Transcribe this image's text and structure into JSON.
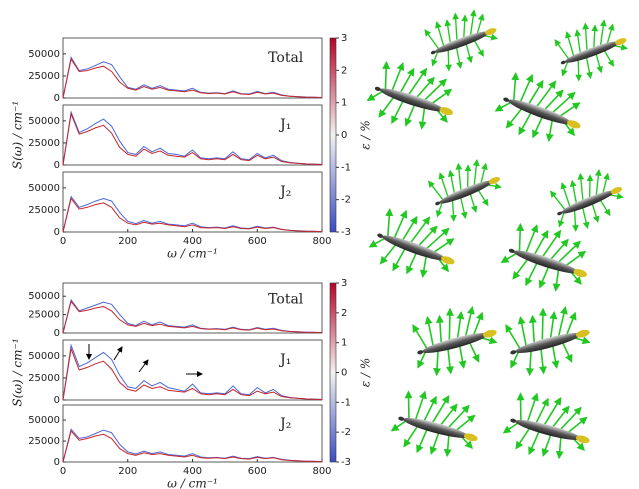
{
  "chart_data": [
    {
      "type": "line",
      "annotation": "Total",
      "annotation_color": "#000000",
      "x": [
        0,
        25,
        50,
        75,
        100,
        125,
        150,
        175,
        200,
        225,
        250,
        275,
        300,
        325,
        350,
        375,
        400,
        425,
        450,
        475,
        500,
        525,
        550,
        575,
        600,
        625,
        650,
        675,
        700,
        725,
        750,
        775,
        800
      ],
      "series": [
        {
          "color": "#4a68d8",
          "values": [
            0,
            46000,
            31000,
            33000,
            37000,
            41000,
            38000,
            24000,
            12000,
            10000,
            15000,
            11000,
            14000,
            10000,
            9000,
            8000,
            11000,
            6500,
            5500,
            6000,
            5000,
            8000,
            5000,
            4500,
            7500,
            5000,
            6500,
            3500,
            2200,
            1600,
            1100,
            900,
            600
          ]
        },
        {
          "color": "#c8262b",
          "values": [
            0,
            44000,
            30000,
            31000,
            34000,
            36000,
            30000,
            18000,
            11000,
            9000,
            13000,
            10000,
            12000,
            9000,
            8000,
            7000,
            9000,
            6000,
            5000,
            5500,
            4500,
            7000,
            4500,
            4000,
            6500,
            4500,
            5500,
            3000,
            2000,
            1500,
            1000,
            800,
            500
          ]
        }
      ],
      "xlim": [
        0,
        800
      ],
      "ylim": [
        0,
        68000
      ],
      "yticks": [
        0,
        25000,
        50000
      ]
    },
    {
      "type": "line",
      "annotation": "J₁",
      "annotation_color": "#d62728",
      "ylabel": "S(ω) / cm⁻¹",
      "colorbar": {
        "label": "ε / %",
        "lim": [
          -3,
          3
        ],
        "ticks": [
          -3,
          -2,
          -1,
          0,
          1,
          2,
          3
        ],
        "colors": [
          "#3b4cc0",
          "#f2f2f2",
          "#b40426"
        ]
      },
      "x": [
        0,
        25,
        50,
        75,
        100,
        125,
        150,
        175,
        200,
        225,
        250,
        275,
        300,
        325,
        350,
        375,
        400,
        425,
        450,
        475,
        500,
        525,
        550,
        575,
        600,
        625,
        650,
        675,
        700,
        725,
        750,
        775,
        800
      ],
      "series": [
        {
          "color": "#4a68d8",
          "values": [
            0,
            60000,
            37000,
            41000,
            47000,
            52000,
            44000,
            27000,
            14000,
            12000,
            21000,
            15000,
            19000,
            13000,
            12000,
            10000,
            17000,
            8000,
            7000,
            8000,
            7000,
            15000,
            7000,
            6000,
            13000,
            8000,
            11000,
            5000,
            3000,
            2000,
            1300,
            1000,
            700
          ]
        },
        {
          "color": "#c8262b",
          "values": [
            0,
            58000,
            35000,
            38000,
            42000,
            45000,
            36000,
            20000,
            12000,
            10000,
            18000,
            13000,
            16000,
            11000,
            10000,
            9000,
            14000,
            7000,
            6000,
            7000,
            6000,
            12000,
            6000,
            5000,
            11000,
            7000,
            9000,
            4000,
            2500,
            1800,
            1200,
            900,
            600
          ]
        }
      ],
      "xlim": [
        0,
        800
      ],
      "ylim": [
        0,
        68000
      ],
      "yticks": [
        0,
        25000,
        50000
      ]
    },
    {
      "type": "line",
      "annotation": "J₂",
      "annotation_color": "#2ca02c",
      "xlabel": "ω / cm⁻¹",
      "x": [
        0,
        25,
        50,
        75,
        100,
        125,
        150,
        175,
        200,
        225,
        250,
        275,
        300,
        325,
        350,
        375,
        400,
        425,
        450,
        475,
        500,
        525,
        550,
        575,
        600,
        625,
        650,
        675,
        700,
        725,
        750,
        775,
        800
      ],
      "series": [
        {
          "color": "#4a68d8",
          "values": [
            0,
            40000,
            28000,
            31000,
            35000,
            38000,
            35000,
            22000,
            12000,
            9500,
            13000,
            10000,
            12000,
            9000,
            8000,
            7000,
            10000,
            6000,
            5000,
            5500,
            4500,
            7000,
            4500,
            4000,
            6500,
            4500,
            5500,
            3200,
            2000,
            1500,
            1000,
            800,
            500
          ]
        },
        {
          "color": "#c8262b",
          "values": [
            0,
            38000,
            26000,
            28000,
            31000,
            33000,
            28000,
            16000,
            10000,
            8000,
            11000,
            9000,
            10000,
            8000,
            7000,
            6000,
            8000,
            5000,
            4500,
            5000,
            4000,
            6000,
            4000,
            3500,
            5500,
            4000,
            5000,
            2800,
            1800,
            1300,
            900,
            700,
            400
          ]
        }
      ],
      "xlim": [
        0,
        800
      ],
      "ylim": [
        0,
        68000
      ],
      "yticks": [
        0,
        25000,
        50000
      ],
      "xticks": [
        0,
        200,
        400,
        600,
        800
      ]
    },
    {
      "type": "line",
      "annotation": "Total",
      "annotation_color": "#000000",
      "x": [
        0,
        25,
        50,
        75,
        100,
        125,
        150,
        175,
        200,
        225,
        250,
        275,
        300,
        325,
        350,
        375,
        400,
        425,
        450,
        475,
        500,
        525,
        550,
        575,
        600,
        625,
        650,
        675,
        700,
        725,
        750,
        775,
        800
      ],
      "series": [
        {
          "color": "#4a68d8",
          "values": [
            0,
            45000,
            30000,
            34000,
            38000,
            42000,
            39000,
            25000,
            13000,
            10000,
            16000,
            11000,
            15000,
            10000,
            9000,
            8000,
            11000,
            6500,
            5500,
            6000,
            5000,
            8000,
            5000,
            4500,
            7500,
            5000,
            6500,
            3500,
            2200,
            1600,
            1100,
            900,
            600
          ]
        },
        {
          "color": "#c8262b",
          "values": [
            0,
            43000,
            29000,
            31000,
            34000,
            36000,
            30000,
            18000,
            11000,
            9000,
            13000,
            10000,
            12000,
            9000,
            8000,
            7000,
            9000,
            6000,
            5000,
            5500,
            4500,
            7000,
            4500,
            4000,
            6500,
            4500,
            5500,
            3000,
            2000,
            1500,
            1000,
            800,
            500
          ]
        }
      ],
      "xlim": [
        0,
        800
      ],
      "ylim": [
        0,
        68000
      ],
      "yticks": [
        0,
        25000,
        50000
      ]
    },
    {
      "type": "line",
      "annotation": "J₁",
      "annotation_color": "#d62728",
      "ylabel": "S(ω) / cm⁻¹",
      "colorbar": {
        "label": "ε / %",
        "lim": [
          -3,
          3
        ],
        "ticks": [
          -3,
          -2,
          -1,
          0,
          1,
          2,
          3
        ],
        "colors": [
          "#3b4cc0",
          "#f2f2f2",
          "#b40426"
        ]
      },
      "x": [
        0,
        25,
        50,
        75,
        100,
        125,
        150,
        175,
        200,
        225,
        250,
        275,
        300,
        325,
        350,
        375,
        400,
        425,
        450,
        475,
        500,
        525,
        550,
        575,
        600,
        625,
        650,
        675,
        700,
        725,
        750,
        775,
        800
      ],
      "series": [
        {
          "color": "#4a68d8",
          "values": [
            0,
            62000,
            38000,
            42000,
            48000,
            54000,
            46000,
            28000,
            15000,
            13000,
            22000,
            16000,
            20000,
            14000,
            12000,
            10000,
            18000,
            8000,
            7000,
            8000,
            7000,
            16000,
            7000,
            6000,
            14000,
            8000,
            12000,
            5000,
            3000,
            2000,
            1300,
            1000,
            700
          ]
        },
        {
          "color": "#c8262b",
          "values": [
            0,
            58000,
            34000,
            37000,
            41000,
            44000,
            35000,
            20000,
            12000,
            10000,
            17000,
            13000,
            15000,
            11000,
            10000,
            9000,
            13000,
            7000,
            6000,
            7000,
            6000,
            12000,
            6000,
            5000,
            10000,
            7000,
            9000,
            4000,
            2500,
            1800,
            1200,
            900,
            600
          ]
        }
      ],
      "xlim": [
        0,
        800
      ],
      "ylim": [
        0,
        68000
      ],
      "yticks": [
        0,
        25000,
        50000
      ]
    },
    {
      "type": "line",
      "annotation": "J₂",
      "annotation_color": "#2ca02c",
      "xlabel": "ω / cm⁻¹",
      "x": [
        0,
        25,
        50,
        75,
        100,
        125,
        150,
        175,
        200,
        225,
        250,
        275,
        300,
        325,
        350,
        375,
        400,
        425,
        450,
        475,
        500,
        525,
        550,
        575,
        600,
        625,
        650,
        675,
        700,
        725,
        750,
        775,
        800
      ],
      "series": [
        {
          "color": "#4a68d8",
          "values": [
            0,
            39000,
            28000,
            30000,
            34000,
            38000,
            35000,
            21000,
            12000,
            9500,
            13000,
            10000,
            12000,
            9000,
            8000,
            7000,
            10000,
            6000,
            5000,
            5500,
            4500,
            7000,
            4500,
            4000,
            6500,
            4500,
            5500,
            3200,
            2000,
            1500,
            1000,
            800,
            500
          ]
        },
        {
          "color": "#c8262b",
          "values": [
            0,
            37000,
            26000,
            28000,
            31000,
            33000,
            28000,
            16000,
            10000,
            8000,
            11000,
            9000,
            10000,
            8000,
            7000,
            6000,
            8000,
            5000,
            4500,
            5000,
            4000,
            6000,
            4000,
            3500,
            5500,
            4000,
            5000,
            2800,
            1800,
            1300,
            900,
            700,
            400
          ]
        }
      ],
      "xlim": [
        0,
        800
      ],
      "ylim": [
        0,
        68000
      ],
      "yticks": [
        0,
        25000,
        50000
      ],
      "xticks": [
        0,
        200,
        400,
        600,
        800
      ]
    }
  ]
}
